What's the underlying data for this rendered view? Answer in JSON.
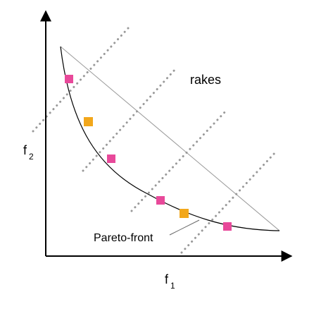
{
  "labels": {
    "x_axis_main": "f",
    "x_axis_sub": "1",
    "y_axis_main": "f",
    "y_axis_sub": "2",
    "rakes": "rakes",
    "pareto_front": "Pareto-front"
  },
  "colors": {
    "axis": "#000000",
    "curve": "#000000",
    "chord": "#999999",
    "rake": "#999999",
    "point_pink": "#e8499a",
    "point_orange": "#f2a71b",
    "pointer": "#666666"
  },
  "points": [
    {
      "type": "pink"
    },
    {
      "type": "orange"
    },
    {
      "type": "pink"
    },
    {
      "type": "pink"
    },
    {
      "type": "orange"
    },
    {
      "type": "pink"
    }
  ]
}
